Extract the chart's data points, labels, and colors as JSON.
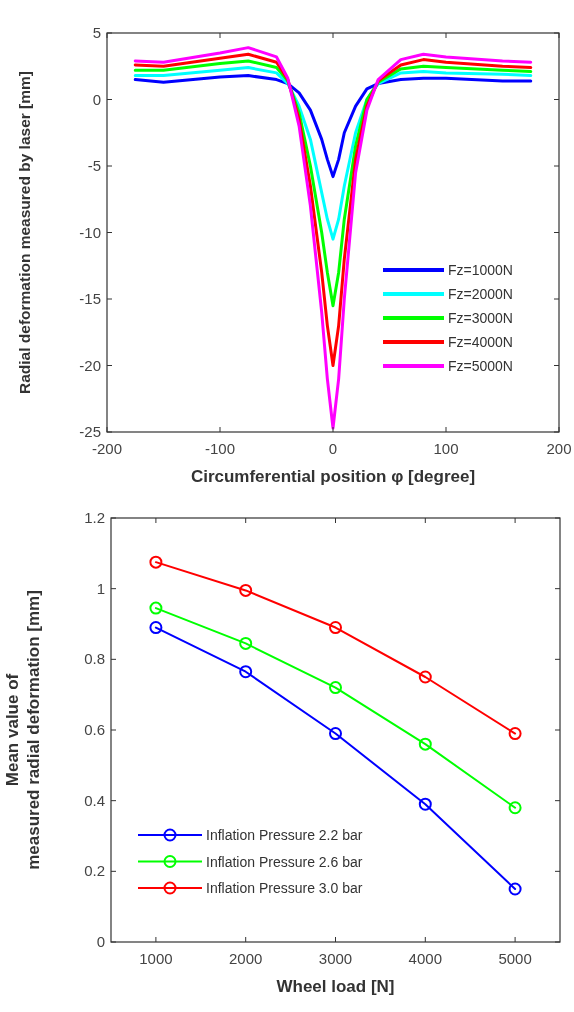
{
  "chart_data": [
    {
      "type": "line",
      "xlabel": "Circumferential position φ [degree]",
      "ylabel": "Radial deformation measured by laser [mm]",
      "xlim": [
        -200,
        200
      ],
      "xticks": [
        -200,
        -100,
        0,
        100,
        200
      ],
      "ylim": [
        -25,
        5
      ],
      "yticks": [
        -25,
        -20,
        -15,
        -10,
        -5,
        0,
        5
      ],
      "grid": false,
      "legend": "bottom right",
      "x": [
        -175,
        -150,
        -100,
        -75,
        -50,
        -40,
        -30,
        -20,
        -10,
        -5,
        0,
        5,
        10,
        20,
        30,
        40,
        60,
        80,
        100,
        150,
        175
      ],
      "series": [
        {
          "name": "Fz=1000N",
          "color": "#0000ff",
          "values": [
            1.5,
            1.3,
            1.7,
            1.8,
            1.5,
            1.2,
            0.5,
            -0.8,
            -3,
            -4.5,
            -5.8,
            -4.5,
            -2.5,
            -0.5,
            0.8,
            1.2,
            1.5,
            1.6,
            1.6,
            1.4,
            1.4
          ]
        },
        {
          "name": "Fz=2000N",
          "color": "#00ffff",
          "values": [
            1.8,
            1.8,
            2.2,
            2.4,
            2,
            1.2,
            -0.5,
            -3,
            -7,
            -9,
            -10.5,
            -9,
            -6.5,
            -2.5,
            0,
            1.2,
            2,
            2.1,
            2,
            1.9,
            1.8
          ]
        },
        {
          "name": "Fz=3000N",
          "color": "#00ff00",
          "values": [
            2.2,
            2.2,
            2.7,
            2.9,
            2.4,
            1.4,
            -1,
            -5,
            -10,
            -13,
            -15.5,
            -13,
            -9,
            -3.5,
            0,
            1.3,
            2.3,
            2.5,
            2.4,
            2.2,
            2.1
          ]
        },
        {
          "name": "Fz=4000N",
          "color": "#ff0000",
          "values": [
            2.6,
            2.5,
            3.1,
            3.4,
            2.8,
            1.5,
            -1.5,
            -6.5,
            -13,
            -17,
            -20,
            -17,
            -12,
            -4.5,
            -0.5,
            1.4,
            2.6,
            3,
            2.8,
            2.5,
            2.4
          ]
        },
        {
          "name": "Fz=5000N",
          "color": "#ff00ff",
          "values": [
            2.9,
            2.8,
            3.5,
            3.9,
            3.2,
            1.6,
            -2,
            -8,
            -16,
            -21,
            -24.7,
            -21,
            -15,
            -5.5,
            -0.8,
            1.5,
            3,
            3.4,
            3.2,
            2.9,
            2.8
          ]
        }
      ]
    },
    {
      "type": "line",
      "xlabel": "Wheel load [N]",
      "ylabel": "Mean value of\nmeasured radial deformation [mm]",
      "xlim": [
        500,
        5500
      ],
      "xticks": [
        1000,
        2000,
        3000,
        4000,
        5000
      ],
      "ylim": [
        0,
        1.2
      ],
      "yticks": [
        0,
        0.2,
        0.4,
        0.6,
        0.8,
        1,
        1.2
      ],
      "grid": false,
      "legend": "bottom left",
      "marker": "circle",
      "x": [
        1000,
        2000,
        3000,
        4000,
        5000
      ],
      "series": [
        {
          "name": "Inflation Pressure 2.2 bar",
          "color": "#0000ff",
          "values": [
            0.89,
            0.765,
            0.59,
            0.39,
            0.15
          ]
        },
        {
          "name": "Inflation Pressure 2.6 bar",
          "color": "#00ff00",
          "values": [
            0.945,
            0.845,
            0.72,
            0.56,
            0.38
          ]
        },
        {
          "name": "Inflation Pressure 3.0 bar",
          "color": "#ff0000",
          "values": [
            1.075,
            0.995,
            0.89,
            0.75,
            0.59
          ]
        }
      ]
    }
  ]
}
